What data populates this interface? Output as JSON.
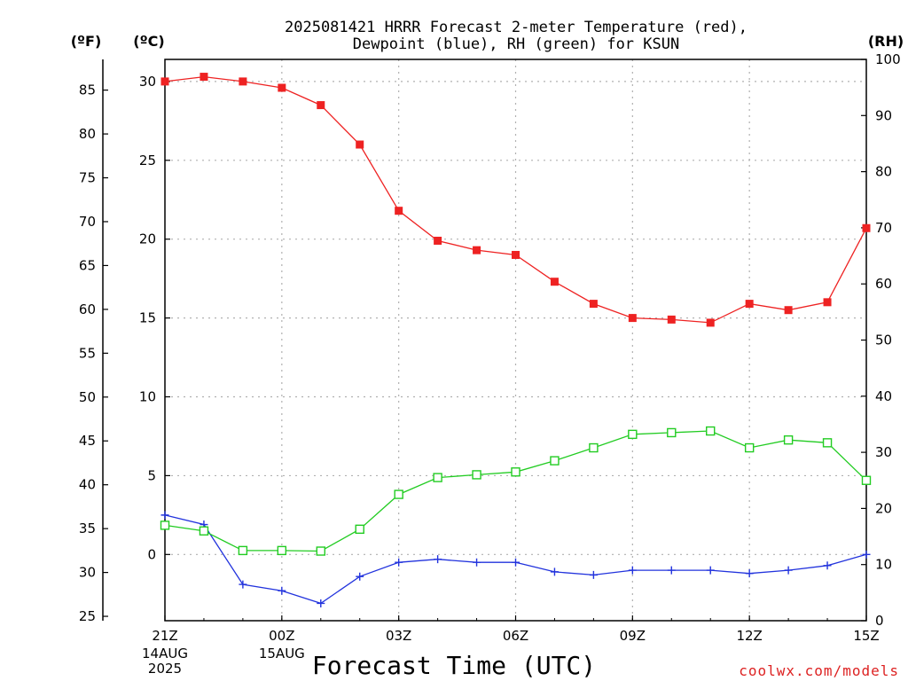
{
  "title_line1": "2025081421 HRRR Forecast 2-meter Temperature (red),",
  "title_line2": "Dewpoint (blue), RH (green) for KSUN",
  "unit_f": "(ºF)",
  "unit_c": "(ºC)",
  "unit_rh": "(RH)",
  "xlabel": "Forecast Time (UTC)",
  "credit": "coolwx.com/models",
  "x_ticks": [
    {
      "label": "21Z",
      "hour": 0,
      "sub": [
        "14AUG",
        "2025"
      ]
    },
    {
      "label": "00Z",
      "hour": 3,
      "sub": [
        "15AUG"
      ]
    },
    {
      "label": "03Z",
      "hour": 6,
      "sub": []
    },
    {
      "label": "06Z",
      "hour": 9,
      "sub": []
    },
    {
      "label": "09Z",
      "hour": 12,
      "sub": []
    },
    {
      "label": "12Z",
      "hour": 15,
      "sub": []
    },
    {
      "label": "15Z",
      "hour": 18,
      "sub": []
    }
  ],
  "axes": {
    "celsius": {
      "range": [
        -4.2,
        31.4
      ],
      "ticks": [
        0,
        5,
        10,
        15,
        20,
        25,
        30
      ]
    },
    "fahrenheit": {
      "range": [
        24.5,
        88.5
      ],
      "ticks": [
        25,
        30,
        35,
        40,
        45,
        50,
        55,
        60,
        65,
        70,
        75,
        80,
        85
      ]
    },
    "rh": {
      "range": [
        0,
        100
      ],
      "ticks": [
        0,
        10,
        20,
        30,
        40,
        50,
        60,
        70,
        80,
        90,
        100
      ]
    }
  },
  "colors": {
    "temperature": "#ee2222",
    "dewpoint": "#2233dd",
    "rh": "#22cc22"
  },
  "chart_data": {
    "type": "line",
    "x": [
      0,
      1,
      2,
      3,
      4,
      5,
      6,
      7,
      8,
      9,
      10,
      11,
      12,
      13,
      14,
      15,
      16,
      17,
      18
    ],
    "series": [
      {
        "name": "Temperature",
        "axis": "celsius",
        "marker": "filled-square",
        "values": [
          30.0,
          30.3,
          30.0,
          29.6,
          28.5,
          26.0,
          21.8,
          19.9,
          19.3,
          19.0,
          17.3,
          15.9,
          15.0,
          14.9,
          14.7,
          15.9,
          15.5,
          16.0,
          20.7
        ]
      },
      {
        "name": "Dewpoint",
        "axis": "celsius",
        "marker": "plus",
        "values": [
          2.5,
          1.9,
          -1.9,
          -2.3,
          -3.1,
          -1.4,
          -0.5,
          -0.3,
          -0.5,
          -0.5,
          -1.1,
          -1.3,
          -1.0,
          -1.0,
          -1.0,
          -1.2,
          -1.0,
          -0.7,
          0.0
        ]
      },
      {
        "name": "RH",
        "axis": "rh",
        "marker": "open-square",
        "values": [
          17,
          16,
          12.5,
          12.5,
          12.4,
          16.3,
          22.5,
          25.5,
          26,
          26.5,
          28.5,
          30.8,
          33.2,
          33.5,
          33.8,
          30.8,
          32.2,
          31.7,
          25
        ]
      }
    ],
    "xlabel": "Forecast Time (UTC)",
    "grid": true
  }
}
